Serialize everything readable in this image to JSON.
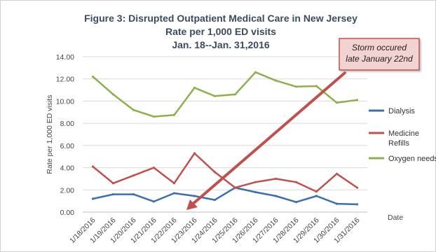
{
  "chart_data": {
    "type": "line",
    "title_lines": [
      "Figure 3:  Disrupted Outpatient Medical Care in New Jersey",
      "Rate per 1,000 ED visits",
      "Jan. 18--Jan. 31,2016"
    ],
    "ylabel": "Rate per  1,000 ED visits",
    "xlabel": "Date",
    "ylim": [
      0,
      14
    ],
    "yticks": [
      "0.00",
      "2.00",
      "4.00",
      "6.00",
      "8.00",
      "10.00",
      "12.00",
      "14.00"
    ],
    "categories": [
      "1/18/2016",
      "1/19/2016",
      "1/20/2016",
      "1/21/2016",
      "1/22/2016",
      "1/23/2016",
      "1/24/2016",
      "1/25/2016",
      "1/26/2016",
      "1/27/2016",
      "1/28/2016",
      "1/29/2016",
      "1/30/2016",
      "1/31/2016"
    ],
    "grid": true,
    "legend_position": "right",
    "series": [
      {
        "name": "Dialysis",
        "legend_lines": [
          "Dialysis"
        ],
        "color": "#3a6fb0",
        "values": [
          1.2,
          1.6,
          1.6,
          0.95,
          1.7,
          1.45,
          1.1,
          2.2,
          1.8,
          1.45,
          0.9,
          1.45,
          0.75,
          0.7
        ]
      },
      {
        "name": "Medicine Refills",
        "legend_lines": [
          "Medicine",
          "Refills"
        ],
        "color": "#c0504d",
        "values": [
          4.1,
          2.6,
          3.3,
          4.0,
          2.6,
          5.3,
          3.6,
          2.2,
          2.7,
          3.0,
          2.7,
          1.85,
          3.45,
          2.2
        ]
      },
      {
        "name": "Oxygen needs",
        "legend_lines": [
          "Oxygen needs"
        ],
        "color": "#8db04a",
        "values": [
          12.2,
          10.6,
          9.2,
          8.6,
          8.75,
          11.2,
          10.45,
          10.6,
          12.6,
          11.85,
          11.3,
          11.35,
          9.85,
          10.1
        ]
      }
    ],
    "annotation": {
      "text_lines": [
        "Storm occured",
        "late January 22nd"
      ],
      "box_fill": "#f2d3d1",
      "box_border": "#c0504d",
      "arrow_color": "#c0504d"
    }
  }
}
